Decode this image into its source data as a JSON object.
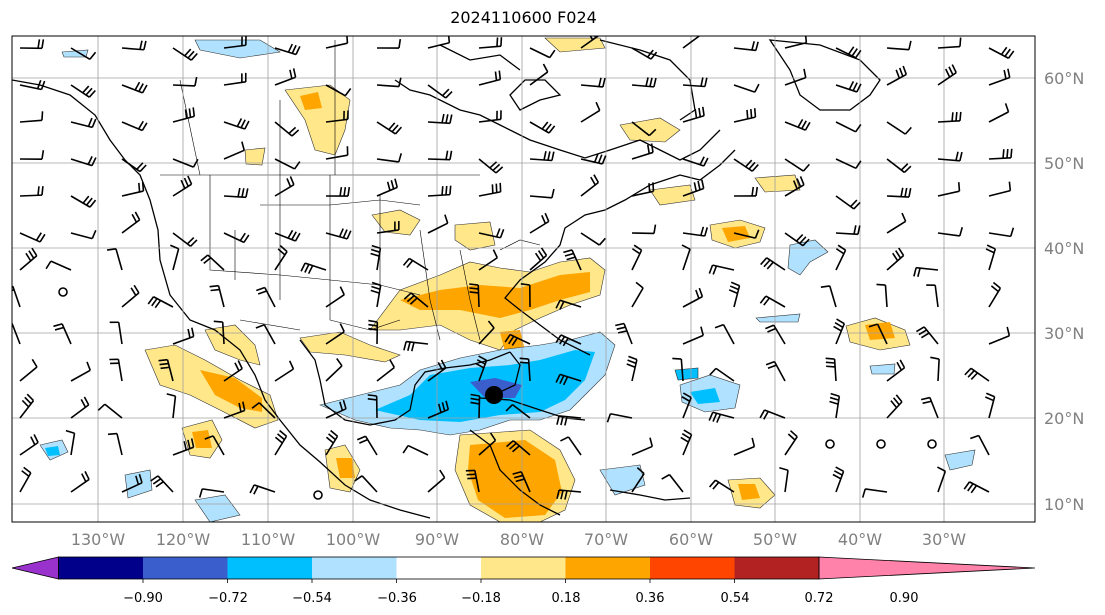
{
  "title": "2024110600 F024",
  "lon_labels": [
    "130°W",
    "120°W",
    "110°W",
    "100°W",
    "90°W",
    "80°W",
    "70°W",
    "60°W",
    "50°W",
    "40°W",
    "30°W"
  ],
  "lat_labels": [
    "60°N",
    "50°N",
    "40°N",
    "30°N",
    "20°N",
    "10°N"
  ],
  "colorbar": {
    "ticks": [
      "−0.90",
      "−0.72",
      "−0.54",
      "−0.36",
      "−0.18",
      "0.18",
      "0.36",
      "0.54",
      "0.72",
      "0.90"
    ],
    "colors": [
      "#9932CC",
      "#00008B",
      "#3A5FCD",
      "#00BFFF",
      "#B0E2FF",
      "#FFFFFF",
      "#FFE78A",
      "#FFA500",
      "#FF4500",
      "#B22222",
      "#FF82AB"
    ]
  }
}
